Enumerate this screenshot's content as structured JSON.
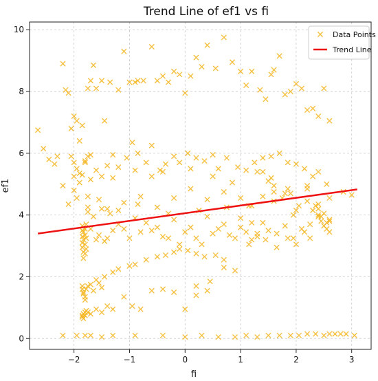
{
  "chart_data": {
    "type": "scatter",
    "title": "Trend Line of ef1 vs fi",
    "xlabel": "fi",
    "ylabel": "ef1",
    "xlim": [
      -2.8,
      3.35
    ],
    "ylim": [
      -0.35,
      10.25
    ],
    "xticks": [
      -2,
      -1,
      0,
      1,
      2,
      3
    ],
    "yticks": [
      0,
      2,
      4,
      6,
      8,
      10
    ],
    "grid": true,
    "legend_position": "top-right",
    "series": [
      {
        "name": "Data Points",
        "kind": "scatter",
        "marker": "x",
        "color": "#f5b51e",
        "x": [
          -2.65,
          -2.55,
          -2.45,
          -2.35,
          -2.3,
          -2.2,
          -2.15,
          -2.1,
          -2.05,
          -2.0,
          -1.95,
          -1.9,
          -1.85,
          -1.8,
          -1.75,
          -1.7,
          -1.65,
          -1.6,
          -1.5,
          -1.45,
          -1.35,
          -1.2,
          -1.1,
          -1.0,
          -0.9,
          -0.85,
          -0.75,
          -0.6,
          -0.5,
          -0.4,
          -0.3,
          -0.2,
          -0.1,
          0.0,
          0.1,
          0.2,
          0.3,
          0.4,
          0.55,
          0.7,
          0.85,
          1.0,
          1.1,
          1.2,
          1.35,
          1.45,
          1.55,
          1.6,
          1.7,
          1.8,
          1.9,
          2.0,
          2.1,
          2.2,
          2.3,
          2.4,
          2.5,
          2.6,
          -2.05,
          -2.0,
          -1.95,
          -1.9,
          -1.85,
          -1.8,
          -1.75,
          -1.7,
          -1.6,
          -1.5,
          -1.4,
          -1.3,
          -1.2,
          -1.05,
          -0.95,
          -0.85,
          -0.7,
          -0.6,
          -0.45,
          -0.35,
          -0.2,
          -0.1,
          0.05,
          0.2,
          0.35,
          0.5,
          0.6,
          0.75,
          0.95,
          1.1,
          1.25,
          1.4,
          1.55,
          1.7,
          1.85,
          2.0,
          2.15,
          2.3,
          2.4,
          2.55,
          -1.85,
          -1.85,
          -1.85,
          -1.85,
          -1.85,
          -1.83,
          -1.83,
          -1.83,
          -1.83,
          -1.8,
          -1.8,
          -1.8,
          -1.8,
          -1.78,
          -1.78,
          -1.78,
          -1.75,
          -1.7,
          -1.65,
          -1.6,
          -1.55,
          -1.5,
          -1.45,
          -1.4,
          -1.35,
          -1.3,
          -1.2,
          -1.1,
          -1.0,
          -0.9,
          -0.8,
          -0.7,
          -0.6,
          -0.5,
          -0.4,
          -0.3,
          -0.2,
          -0.1,
          0.0,
          0.1,
          0.2,
          0.3,
          0.4,
          0.5,
          0.6,
          0.7,
          0.8,
          0.9,
          1.0,
          1.1,
          1.2,
          1.3,
          1.4,
          1.5,
          1.65,
          1.8,
          1.95,
          2.1,
          2.25,
          2.4,
          2.5,
          2.6,
          -1.85,
          -1.85,
          -1.83,
          -1.83,
          -1.8,
          -1.8,
          -1.78,
          -1.75,
          -1.7,
          -1.65,
          -1.6,
          -1.55,
          -1.5,
          -1.45,
          -1.3,
          -1.2,
          -1.0,
          -0.9,
          -0.7,
          -0.5,
          -0.35,
          -0.2,
          -0.1,
          0.05,
          0.2,
          0.35,
          0.55,
          0.7,
          -1.85,
          -1.85,
          -1.83,
          -1.83,
          -1.8,
          -1.8,
          -1.78,
          -1.75,
          -1.7,
          -1.6,
          -1.5,
          -1.4,
          -1.3,
          -1.1,
          -0.95,
          -0.8,
          -0.6,
          -0.4,
          -0.2,
          0.0,
          0.2,
          0.4,
          -2.2,
          -1.95,
          -1.8,
          -1.7,
          -1.5,
          -1.3,
          -0.9,
          -0.4,
          0.0,
          0.3,
          0.6,
          0.9,
          1.1,
          1.3,
          1.5,
          1.7,
          1.9,
          2.05,
          2.2,
          2.35,
          2.5,
          2.6,
          2.7,
          2.8,
          2.9,
          3.05,
          -2.2,
          -2.0,
          -1.75,
          -1.4,
          -1.1,
          -0.8,
          -0.5,
          -0.2,
          0.1,
          0.4,
          0.7,
          1.0,
          1.2,
          1.4,
          1.6,
          1.8,
          2.0,
          2.2,
          2.4,
          2.6,
          2.85,
          3.0,
          -2.0,
          -1.9,
          -1.7,
          -1.3,
          -0.9,
          -0.6,
          -0.4,
          0.1,
          0.5,
          0.85,
          1.3,
          1.55,
          1.85,
          2.2,
          -2.1,
          -1.95,
          -1.75,
          -1.55,
          -1.2,
          -0.85,
          -0.3,
          0.25,
          0.75,
          1.15,
          1.6,
          1.95,
          2.4,
          2.6,
          1.0,
          1.2,
          1.4,
          1.5,
          1.6,
          1.75,
          1.9,
          2.05,
          2.2,
          2.3,
          2.4,
          2.45,
          2.5,
          2.55,
          2.6,
          2.35,
          2.25,
          2.45,
          2.55,
          2.15,
          2.0,
          1.85,
          1.65,
          1.45,
          1.3,
          1.15,
          0.9,
          0.7,
          0.45,
          0.2
        ],
        "y": [
          6.75,
          6.15,
          5.8,
          5.65,
          5.9,
          8.9,
          8.05,
          7.95,
          6.8,
          7.2,
          7.05,
          6.4,
          6.9,
          5.7,
          8.1,
          8.35,
          8.85,
          8.1,
          8.35,
          7.05,
          8.3,
          8.05,
          9.3,
          8.3,
          8.3,
          8.35,
          8.35,
          9.45,
          8.35,
          8.5,
          8.3,
          8.65,
          8.55,
          7.95,
          8.5,
          9.1,
          8.8,
          9.5,
          8.75,
          9.75,
          8.95,
          8.65,
          8.2,
          8.65,
          8.05,
          7.75,
          8.55,
          8.7,
          9.15,
          7.9,
          8.0,
          8.25,
          8.1,
          7.4,
          7.45,
          7.2,
          8.1,
          7.05,
          5.9,
          5.7,
          5.5,
          5.35,
          5.3,
          5.75,
          5.9,
          5.95,
          5.45,
          5.25,
          5.6,
          5.95,
          5.55,
          5.85,
          6.35,
          6.0,
          5.7,
          6.25,
          5.45,
          5.65,
          5.9,
          5.7,
          6.0,
          5.85,
          5.75,
          5.95,
          5.5,
          5.85,
          5.55,
          5.45,
          5.7,
          5.85,
          5.9,
          6.0,
          5.7,
          5.65,
          5.5,
          5.25,
          5.4,
          5.0,
          3.65,
          3.5,
          3.3,
          3.1,
          2.95,
          3.45,
          3.2,
          2.8,
          2.6,
          3.55,
          3.35,
          3.05,
          2.75,
          3.7,
          3.25,
          2.9,
          4.1,
          3.55,
          3.95,
          3.2,
          3.35,
          4.2,
          3.15,
          3.25,
          4.05,
          3.5,
          3.7,
          3.55,
          3.25,
          3.9,
          3.45,
          3.75,
          3.5,
          3.6,
          3.3,
          3.25,
          3.85,
          3.05,
          3.45,
          3.6,
          3.25,
          3.05,
          3.95,
          3.4,
          3.55,
          3.7,
          3.35,
          3.25,
          3.6,
          3.45,
          3.2,
          3.3,
          3.75,
          3.5,
          3.4,
          3.65,
          3.25,
          3.55,
          3.7,
          3.95,
          4.05,
          3.8,
          1.7,
          1.6,
          1.5,
          1.45,
          1.35,
          1.25,
          1.6,
          1.7,
          1.75,
          1.55,
          1.9,
          1.8,
          1.65,
          2.0,
          2.15,
          2.25,
          2.35,
          2.4,
          2.55,
          2.65,
          2.7,
          2.8,
          2.9,
          2.85,
          2.75,
          2.65,
          2.7,
          2.55,
          0.75,
          0.7,
          0.8,
          0.65,
          0.75,
          0.85,
          0.9,
          0.85,
          0.8,
          0.95,
          0.85,
          1.05,
          0.95,
          1.35,
          1.05,
          0.95,
          1.55,
          1.6,
          1.5,
          0.95,
          1.4,
          1.55,
          0.1,
          0.1,
          0.1,
          0.1,
          0.05,
          0.1,
          0.1,
          0.1,
          0.05,
          0.1,
          0.05,
          0.05,
          0.1,
          0.05,
          0.1,
          0.1,
          0.1,
          0.1,
          0.15,
          0.15,
          0.1,
          0.15,
          0.15,
          0.15,
          0.15,
          0.1,
          4.95,
          4.8,
          4.6,
          4.2,
          4.4,
          4.6,
          4.25,
          4.55,
          4.85,
          4.5,
          4.75,
          4.55,
          4.3,
          4.6,
          4.45,
          4.7,
          4.15,
          4.85,
          4.2,
          4.55,
          4.75,
          4.65,
          5.25,
          5.05,
          5.15,
          5.2,
          5.45,
          5.25,
          5.4,
          5.5,
          5.25,
          5.05,
          5.4,
          5.2,
          4.85,
          4.95,
          4.35,
          4.55,
          4.25,
          4.5,
          4.15,
          4.35,
          4.05,
          4.15,
          4.25,
          4.3,
          4.75,
          4.0,
          4.35,
          3.45,
          3.9,
          3.75,
          5.4,
          5.1,
          4.95,
          4.55,
          4.7,
          4.3,
          4.45,
          4.15,
          4.0,
          3.8,
          3.65,
          3.55,
          3.85,
          4.3,
          3.25,
          3.95,
          3.75,
          3.45,
          3.05,
          3.25,
          2.95,
          3.2,
          3.4,
          3.05,
          2.2,
          2.3,
          1.85,
          1.7
        ]
      },
      {
        "name": "Trend Line",
        "kind": "line",
        "color": "#ee1111",
        "x": [
          -2.65,
          3.1
        ],
        "y": [
          3.4,
          4.83
        ]
      }
    ]
  }
}
